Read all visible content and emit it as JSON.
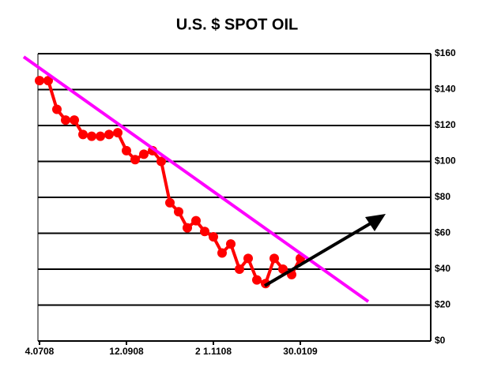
{
  "chart_data": {
    "type": "line",
    "title": "U.S. $ SPOT OIL",
    "categories": [
      "4.0708",
      null,
      null,
      null,
      null,
      null,
      null,
      null,
      null,
      null,
      "12.0908",
      null,
      null,
      null,
      null,
      null,
      null,
      null,
      null,
      null,
      "2 1.1108",
      null,
      null,
      null,
      null,
      null,
      null,
      null,
      null,
      null,
      "30.0109"
    ],
    "series": [
      {
        "name": "Spot oil",
        "color": "#ff0000",
        "values": [
          145,
          145,
          129,
          123,
          123,
          115,
          114,
          114,
          115,
          116,
          106,
          101,
          104,
          106,
          100,
          77,
          72,
          63,
          67,
          61,
          58,
          49,
          54,
          40,
          46,
          34,
          32,
          46,
          40,
          37,
          46
        ]
      }
    ],
    "ylim": [
      0,
      160
    ],
    "yticks": [
      {
        "value": 0,
        "label": "$0"
      },
      {
        "value": 20,
        "label": "$20"
      },
      {
        "value": 40,
        "label": "$40"
      },
      {
        "value": 60,
        "label": "$60"
      },
      {
        "value": 80,
        "label": "$80"
      },
      {
        "value": 100,
        "label": "$100"
      },
      {
        "value": 120,
        "label": "$120"
      },
      {
        "value": 140,
        "label": "$140"
      },
      {
        "value": 160,
        "label": "$160"
      }
    ],
    "grid": true
  }
}
